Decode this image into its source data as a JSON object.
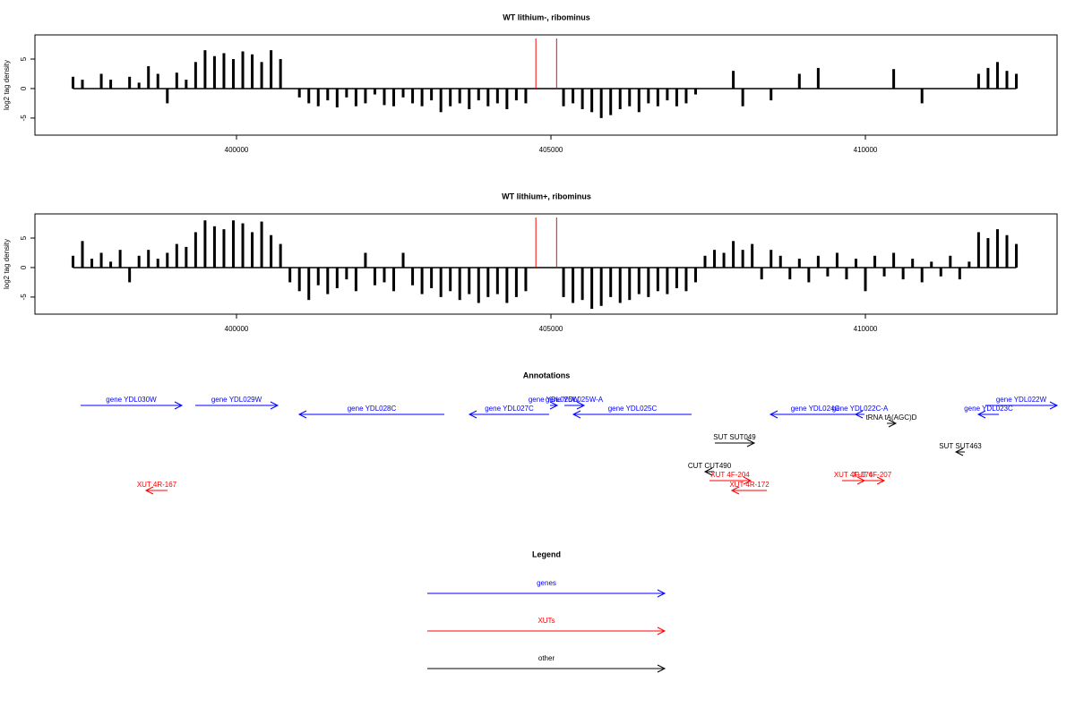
{
  "chart_data": [
    {
      "type": "bar",
      "title": "WT lithium-, ribominus",
      "ylabel": "log2 tag density",
      "color": "#000000",
      "xlim": [
        396795,
        413048
      ],
      "ylim": [
        -7.9,
        9.1
      ],
      "xticks": [
        400000,
        405000,
        410000
      ],
      "yticks": [
        -5,
        0,
        5
      ],
      "markers": [
        404760,
        405090
      ],
      "marker_color": "#ff0000",
      "x": [
        397400,
        397550,
        397700,
        397850,
        398000,
        398150,
        398300,
        398450,
        398600,
        398750,
        398900,
        399050,
        399200,
        399350,
        399500,
        399650,
        399800,
        399950,
        400100,
        400250,
        400400,
        400550,
        400700,
        400850,
        401000,
        401150,
        401300,
        401450,
        401600,
        401750,
        401900,
        402050,
        402200,
        402350,
        402500,
        402650,
        402800,
        402950,
        403100,
        403250,
        403400,
        403550,
        403700,
        403850,
        404000,
        404150,
        404300,
        404450,
        404600,
        404750,
        404900,
        405050,
        405200,
        405350,
        405500,
        405650,
        405800,
        405950,
        406100,
        406250,
        406400,
        406550,
        406700,
        406850,
        407000,
        407150,
        407300,
        407450,
        407600,
        407750,
        407900,
        408050,
        408200,
        408350,
        408500,
        408650,
        408800,
        408950,
        409100,
        409250,
        409400,
        409550,
        409700,
        409850,
        410000,
        410150,
        410300,
        410450,
        410600,
        410750,
        410900,
        411050,
        411200,
        411350,
        411500,
        411650,
        411800,
        411950,
        412100,
        412250,
        412400
      ],
      "values": [
        2,
        1.5,
        0,
        2.5,
        1.5,
        0,
        2,
        1,
        3.8,
        2.5,
        -2.5,
        2.7,
        1.5,
        4.5,
        6.5,
        5.5,
        6,
        5,
        6.3,
        5.8,
        4.5,
        6.5,
        5,
        0,
        -1.5,
        -2.5,
        -3,
        -2,
        -3.2,
        -1.5,
        -3,
        -2.5,
        -1,
        -2.8,
        -3,
        -1.5,
        -2.5,
        -3,
        -2,
        -4,
        -3,
        -2.5,
        -3.5,
        -2,
        -3,
        -2.5,
        -3.5,
        -2,
        -2.5,
        0,
        0,
        0,
        -3,
        -2.5,
        -3.5,
        -4,
        -5,
        -4.5,
        -3.5,
        -3,
        -4,
        -2.5,
        -3,
        -2,
        -3,
        -2.5,
        -1,
        0,
        0,
        0,
        3,
        -3,
        0,
        0,
        -2,
        0,
        0,
        2.5,
        0,
        3.5,
        0,
        0,
        0,
        0,
        0,
        0,
        0,
        3.3,
        0,
        0,
        -2.5,
        0,
        0,
        0,
        0,
        0,
        2.5,
        3.5,
        4.5,
        3,
        2.5
      ]
    },
    {
      "type": "bar",
      "title": "WT lithium+, ribominus",
      "ylabel": "log2 tag density",
      "color": "#000000",
      "xlim": [
        396795,
        413048
      ],
      "ylim": [
        -7.9,
        9.1
      ],
      "xticks": [
        400000,
        405000,
        410000
      ],
      "yticks": [
        -5,
        0,
        5
      ],
      "markers": [
        404760,
        405090
      ],
      "marker_color": "#ff0000",
      "x": [
        397400,
        397550,
        397700,
        397850,
        398000,
        398150,
        398300,
        398450,
        398600,
        398750,
        398900,
        399050,
        399200,
        399350,
        399500,
        399650,
        399800,
        399950,
        400100,
        400250,
        400400,
        400550,
        400700,
        400850,
        401000,
        401150,
        401300,
        401450,
        401600,
        401750,
        401900,
        402050,
        402200,
        402350,
        402500,
        402650,
        402800,
        402950,
        403100,
        403250,
        403400,
        403550,
        403700,
        403850,
        404000,
        404150,
        404300,
        404450,
        404600,
        404750,
        404900,
        405050,
        405200,
        405350,
        405500,
        405650,
        405800,
        405950,
        406100,
        406250,
        406400,
        406550,
        406700,
        406850,
        407000,
        407150,
        407300,
        407450,
        407600,
        407750,
        407900,
        408050,
        408200,
        408350,
        408500,
        408650,
        408800,
        408950,
        409100,
        409250,
        409400,
        409550,
        409700,
        409850,
        410000,
        410150,
        410300,
        410450,
        410600,
        410750,
        410900,
        411050,
        411200,
        411350,
        411500,
        411650,
        411800,
        411950,
        412100,
        412250,
        412400
      ],
      "values": [
        2,
        4.5,
        1.5,
        2.5,
        1,
        3,
        -2.5,
        2,
        3,
        1.5,
        2.5,
        4,
        3.5,
        6,
        8,
        7,
        6.5,
        8,
        7.5,
        6,
        7.8,
        5.5,
        4,
        -2.5,
        -4,
        -5.5,
        -3,
        -4.5,
        -3.5,
        -2,
        -4,
        2.5,
        -3,
        -2.5,
        -4,
        2.5,
        -3,
        -4.5,
        -3.5,
        -5,
        -4,
        -5.5,
        -4.5,
        -6,
        -5,
        -4.5,
        -6,
        -5,
        -4,
        0,
        0,
        0,
        -5,
        -6,
        -5.5,
        -7,
        -6.5,
        -5,
        -6,
        -5.5,
        -4.5,
        -5,
        -4,
        -4.5,
        -3.5,
        -4,
        -2.5,
        2,
        3,
        2.5,
        4.5,
        3,
        4,
        -2,
        3,
        2,
        -2,
        1.5,
        -2.5,
        2,
        -1.5,
        2.5,
        -2,
        1.5,
        -4,
        2,
        -1.5,
        2.5,
        -2,
        1.5,
        -2.5,
        1,
        -1.5,
        2,
        -2,
        1,
        6,
        5,
        6.5,
        5.5,
        4
      ]
    }
  ],
  "annotations": {
    "title": "Annotations",
    "xlim": [
      396795,
      413048
    ],
    "items": [
      {
        "label": "gene YDL030W",
        "color": "#0000ff",
        "start": 397521,
        "end": 399131,
        "strand": "+"
      },
      {
        "label": "gene YDL029W",
        "color": "#0000ff",
        "start": 399345,
        "end": 400655,
        "strand": "+"
      },
      {
        "label": "gene YDL028C",
        "color": "#0000ff",
        "start": 400997,
        "end": 403305,
        "strand": "-"
      },
      {
        "label": "gene YDL027C",
        "color": "#0000ff",
        "start": 403704,
        "end": 404971,
        "strand": "-"
      },
      {
        "label": "gene YDL026W",
        "color": "#0000ff",
        "start": 404986,
        "end": 405100,
        "strand": "+"
      },
      {
        "label": "gene YDL025W-A",
        "color": "#0000ff",
        "start": 405214,
        "end": 405527,
        "strand": "+"
      },
      {
        "label": "gene YDL025C",
        "color": "#0000ff",
        "start": 405356,
        "end": 407236,
        "strand": "-"
      },
      {
        "label": "gene YDL024C",
        "color": "#0000ff",
        "start": 408490,
        "end": 409914,
        "strand": "-"
      },
      {
        "label": "gene YDL022C-A",
        "color": "#0000ff",
        "start": 409843,
        "end": 409986,
        "strand": "-"
      },
      {
        "label": "tRNA tA(AGC)D",
        "color": "#000000",
        "start": 410342,
        "end": 410484,
        "strand": "+"
      },
      {
        "label": "gene YDL023C",
        "color": "#0000ff",
        "start": 411795,
        "end": 412122,
        "strand": "-"
      },
      {
        "label": "gene YDL022W",
        "color": "#0000ff",
        "start": 411909,
        "end": 413048,
        "strand": "+"
      },
      {
        "label": "SUT SUT049",
        "color": "#000000",
        "start": 407607,
        "end": 408233,
        "strand": "+"
      },
      {
        "label": "SUT SUT463",
        "color": "#000000",
        "start": 411439,
        "end": 411581,
        "strand": "-"
      },
      {
        "label": "CUT CUT490",
        "color": "#000000",
        "start": 407450,
        "end": 407593,
        "strand": "-"
      },
      {
        "label": "XUT 4F-204",
        "color": "#ff0000",
        "start": 407521,
        "end": 408177,
        "strand": "+"
      },
      {
        "label": "XUT 4R-172",
        "color": "#ff0000",
        "start": 407877,
        "end": 408433,
        "strand": "-"
      },
      {
        "label": "XUT 4F-176",
        "color": "#ff0000",
        "start": 409630,
        "end": 409986,
        "strand": "+"
      },
      {
        "label": "XUT 4F-207",
        "color": "#ff0000",
        "start": 409914,
        "end": 410299,
        "strand": "+"
      },
      {
        "label": "XUT 4R-167",
        "color": "#ff0000",
        "start": 398561,
        "end": 398903,
        "strand": "-"
      }
    ]
  },
  "legend": {
    "title": "Legend",
    "entries": [
      {
        "label": "genes",
        "color": "#0000ff"
      },
      {
        "label": "XUTs",
        "color": "#ff0000"
      },
      {
        "label": "other",
        "color": "#000000"
      }
    ]
  }
}
